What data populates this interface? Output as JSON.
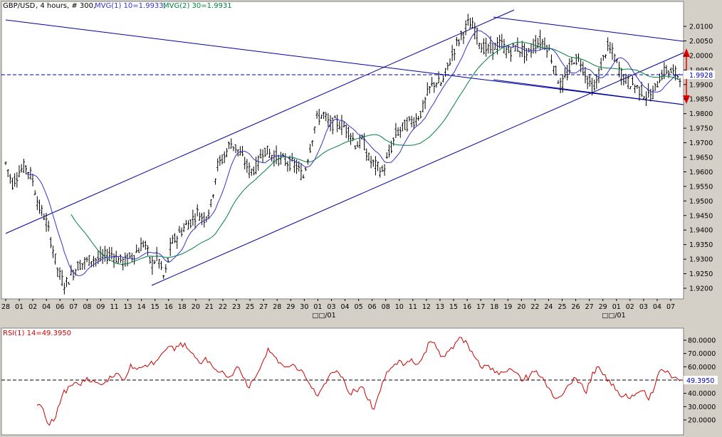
{
  "legend": {
    "symbol": "GBP/USD",
    "interval": ", 4 hours, # 300,",
    "mvg1": "MVG(1) 10=1.9933,",
    "mvg2": "MVG(2) 30=1.9931"
  },
  "rsi_legend": "RSI(1) 14=49.3950",
  "colors": {
    "price": "#000000",
    "mvg1": "#3333cc",
    "mvg2": "#008040",
    "rsi": "#cc0000",
    "channel": "#0000a0",
    "arrow": "#e00000"
  },
  "chart_data": [
    {
      "type": "ohlc",
      "title": "GBP/USD",
      "ylim": [
        1.915,
        2.0145
      ],
      "yticks": [
        "2.0100",
        "2.0050",
        "2.0000",
        "1.9950",
        "1.9900",
        "1.9850",
        "1.9800",
        "1.9750",
        "1.9700",
        "1.9650",
        "1.9600",
        "1.9550",
        "1.9500",
        "1.9450",
        "1.9400",
        "1.9350",
        "1.9300",
        "1.9250",
        "1.9200"
      ],
      "xticks": [
        "28",
        "01",
        "02",
        "04",
        "06",
        "07",
        "08",
        "09",
        "11",
        "13",
        "14",
        "15",
        "16",
        "18",
        "20",
        "21",
        "22",
        "23",
        "25",
        "27",
        "28",
        "29",
        "30",
        "01",
        "03",
        "04",
        "05",
        "06",
        "08",
        "10",
        "11",
        "12",
        "13",
        "15",
        "16",
        "17",
        "18",
        "19",
        "20",
        "22",
        "24",
        "25",
        "26",
        "27",
        "29",
        "01",
        "02",
        "03",
        "04",
        "07"
      ],
      "xsub_labels": [
        "□□/01",
        "□□/01"
      ],
      "current_value": "1.9928",
      "series_names": [
        "MVG(1) 10",
        "MVG(2) 30"
      ],
      "price_path": [
        1.963,
        1.956,
        1.96,
        1.962,
        1.958,
        1.948,
        1.944,
        1.935,
        1.925,
        1.921,
        1.925,
        1.928,
        1.929,
        1.93,
        1.93,
        1.931,
        1.932,
        1.93,
        1.929,
        1.931,
        1.933,
        1.936,
        1.928,
        1.931,
        1.923,
        1.935,
        1.938,
        1.941,
        1.943,
        1.946,
        1.944,
        1.948,
        1.962,
        1.965,
        1.97,
        1.968,
        1.964,
        1.96,
        1.962,
        1.968,
        1.966,
        1.965,
        1.964,
        1.963,
        1.962,
        1.958,
        1.968,
        1.978,
        1.98,
        1.976,
        1.977,
        1.976,
        1.974,
        1.969,
        1.971,
        1.964,
        1.962,
        1.96,
        1.966,
        1.973,
        1.975,
        1.977,
        1.978,
        1.981,
        1.988,
        1.991,
        1.99,
        1.997,
        2.003,
        2.007,
        2.011,
        2.009,
        2.003,
        2.002,
        2.003,
        2.004,
        2.001,
        2.003,
        2.002,
        2.0,
        2.004,
        2.005,
        2.003,
        1.996,
        1.989,
        1.994,
        1.999,
        1.998,
        1.992,
        1.988,
        1.996,
        2.003,
        2.0,
        1.994,
        1.991,
        1.99,
        1.988,
        1.986,
        1.987,
        1.993,
        1.995,
        1.994,
        1.993
      ],
      "channels": "ascending channel, descending channel, long-term trend line"
    },
    {
      "type": "line",
      "title": "RSI(1) 14",
      "ylim": [
        14,
        86
      ],
      "yticks": [
        "80.0000",
        "70.0000",
        "60.0000",
        "50.0000",
        "40.0000",
        "30.0000",
        "20.0000"
      ],
      "current_value": "49.3950",
      "reference_level": 50,
      "values": [
        31,
        28,
        16,
        22,
        38,
        45,
        48,
        46,
        52,
        50,
        47,
        49,
        52,
        55,
        50,
        62,
        58,
        60,
        62,
        64,
        70,
        75,
        72,
        78,
        74,
        70,
        63,
        67,
        61,
        56,
        55,
        53,
        60,
        52,
        44,
        52,
        62,
        74,
        68,
        63,
        60,
        62,
        57,
        52,
        44,
        38,
        47,
        55,
        57,
        52,
        40,
        42,
        45,
        35,
        28,
        42,
        56,
        60,
        65,
        62,
        66,
        62,
        70,
        79,
        74,
        68,
        72,
        78,
        82,
        77,
        68,
        60,
        61,
        59,
        54,
        56,
        58,
        55,
        50,
        54,
        57,
        52,
        44,
        36,
        38,
        46,
        52,
        48,
        40,
        56,
        60,
        54,
        46,
        42,
        38,
        36,
        40,
        42,
        35,
        46,
        58,
        57,
        52,
        49.4
      ]
    }
  ]
}
